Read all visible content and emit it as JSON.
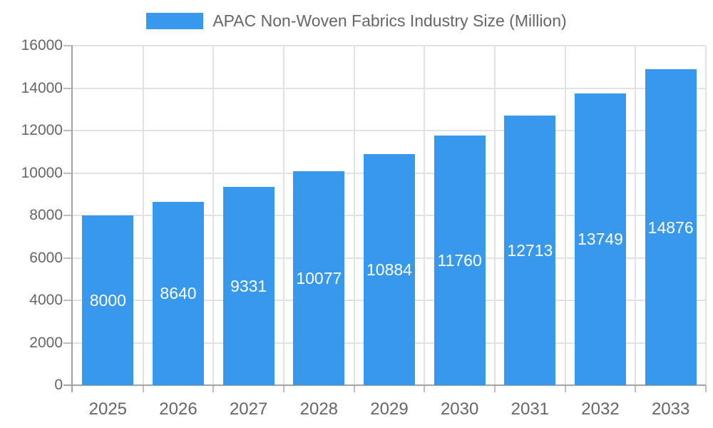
{
  "chart_data": {
    "type": "bar",
    "title": "APAC Non-Woven Fabrics Industry Size (Million)",
    "legend": {
      "position": "top",
      "label": "APAC Non-Woven Fabrics Industry Size (Million)"
    },
    "categories": [
      "2025",
      "2026",
      "2027",
      "2028",
      "2029",
      "2030",
      "2031",
      "2032",
      "2033"
    ],
    "series": [
      {
        "name": "APAC Non-Woven Fabrics Industry Size (Million)",
        "values": [
          8000,
          8640,
          9331,
          10077,
          10884,
          11760,
          12713,
          13749,
          14876
        ]
      }
    ],
    "value_labels_visible": true,
    "xlabel": "",
    "ylabel": "",
    "ylim": [
      0,
      16000
    ],
    "yticks": [
      0,
      2000,
      4000,
      6000,
      8000,
      10000,
      12000,
      14000,
      16000
    ],
    "grid": true,
    "colors": {
      "bar": "#3899EC",
      "value_label": "#FFFFFF",
      "axis_text": "#666666",
      "gridline": "#E2E2E2",
      "tick": "#BDBDBD",
      "axis_line": "#A3A3A3",
      "background": "#FFFFFF"
    }
  }
}
